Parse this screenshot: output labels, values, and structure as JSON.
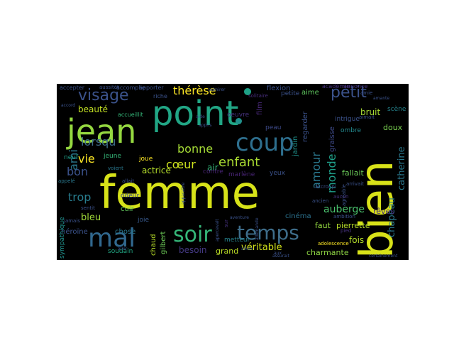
{
  "words": [
    {
      "text": "femme",
      "color": "#d7e219"
    },
    {
      "text": "point",
      "color": "#21a685"
    },
    {
      "text": "bien",
      "color": "#d8e219"
    },
    {
      "text": "jean",
      "color": "#95d840"
    },
    {
      "text": "coup",
      "color": "#2e6f8e"
    },
    {
      "text": "mal",
      "color": "#31688e"
    },
    {
      "text": "soir",
      "color": "#35b779"
    },
    {
      "text": "temps",
      "color": "#3e6d8a"
    },
    {
      "text": "visage",
      "color": "#3b528b"
    },
    {
      "text": "petit",
      "color": "#3b528b"
    },
    {
      "text": "thérèse",
      "color": "#fde725"
    },
    {
      "text": "enfant",
      "color": "#aadc32"
    },
    {
      "text": "bonne",
      "color": "#a5db36"
    },
    {
      "text": "cœur",
      "color": "#cde11d"
    },
    {
      "text": "amour",
      "color": "#2a788e"
    },
    {
      "text": "monde",
      "color": "#1f9e89"
    },
    {
      "text": "lorsqu",
      "color": "#3e6d8a"
    },
    {
      "text": "ami",
      "color": "#2a788e"
    },
    {
      "text": "bon",
      "color": "#3b528b"
    },
    {
      "text": "trop",
      "color": "#287d8e"
    },
    {
      "text": "vie",
      "color": "#fde725"
    },
    {
      "text": "bleu",
      "color": "#a0da39"
    },
    {
      "text": "véritable",
      "color": "#d2e21b"
    },
    {
      "text": "auberge",
      "color": "#4ac16d"
    },
    {
      "text": "chapeau",
      "color": "#2a788e"
    },
    {
      "text": "catherine",
      "color": "#2a788e"
    },
    {
      "text": "beauté",
      "color": "#c2df23"
    },
    {
      "text": "actrice",
      "color": "#b5de2b"
    },
    {
      "text": "air",
      "color": "#35b779"
    },
    {
      "text": "bruit",
      "color": "#a8db34"
    },
    {
      "text": "fois",
      "color": "#b5de2b"
    },
    {
      "text": "besoin",
      "color": "#443983"
    },
    {
      "text": "grand",
      "color": "#bddf26"
    },
    {
      "text": "charmante",
      "color": "#8fd744"
    },
    {
      "text": "doux",
      "color": "#7ad151"
    },
    {
      "text": "fallait",
      "color": "#6ccd5a"
    },
    {
      "text": "faut",
      "color": "#94d840"
    },
    {
      "text": "pierrette",
      "color": "#b8de29"
    },
    {
      "text": "rêves",
      "color": "#472d7b"
    },
    {
      "text": "aime",
      "color": "#60ca60"
    },
    {
      "text": "flexion",
      "color": "#3b528b"
    },
    {
      "text": "gilbert",
      "color": "#6ece58"
    },
    {
      "text": "héroïne",
      "color": "#3b528b"
    },
    {
      "text": "film",
      "color": "#482878"
    },
    {
      "text": "graisse",
      "color": "#3e4a89"
    },
    {
      "text": "jardin",
      "color": "#20928c"
    },
    {
      "text": "regarder",
      "color": "#3b528b"
    },
    {
      "text": "cinéma",
      "color": "#2c728e"
    },
    {
      "text": "chose",
      "color": "#2a788e"
    },
    {
      "text": "cuir",
      "color": "#63cb5f"
    },
    {
      "text": "chaud",
      "color": "#b8de29"
    },
    {
      "text": "odeur",
      "color": "#3e4a89"
    },
    {
      "text": "sympathique",
      "color": "#21918c"
    },
    {
      "text": "soudain",
      "color": "#22a884"
    },
    {
      "text": "jeune",
      "color": "#35b779"
    },
    {
      "text": "joue",
      "color": "#fde725"
    },
    {
      "text": "joie",
      "color": "#38598c"
    },
    {
      "text": "contre",
      "color": "#482475"
    },
    {
      "text": "marlène",
      "color": "#482475"
    },
    {
      "text": "yeux",
      "color": "#3b528b"
    },
    {
      "text": "neuf",
      "color": "#1f9e89"
    },
    {
      "text": "oeuvre",
      "color": "#46327e"
    },
    {
      "text": "petite",
      "color": "#3b528b"
    },
    {
      "text": "académie",
      "color": "#46327e"
    },
    {
      "text": "annonce",
      "color": "#46327e"
    },
    {
      "text": "accueillit",
      "color": "#35b779"
    },
    {
      "text": "accomplie",
      "color": "#3b528b"
    },
    {
      "text": "apporter",
      "color": "#3b528b"
    },
    {
      "text": "accepter",
      "color": "#3b528b"
    },
    {
      "text": "ombre",
      "color": "#23898e"
    },
    {
      "text": "intrigue",
      "color": "#3b528b"
    },
    {
      "text": "scène",
      "color": "#25848e"
    },
    {
      "text": "peau",
      "color": "#3e4a89"
    },
    {
      "text": "metteur",
      "color": "#26828e"
    },
    {
      "text": "adolescence",
      "color": "#fde725"
    },
    {
      "text": "ancien",
      "color": "#3b528b"
    },
    {
      "text": "accroupi",
      "color": "#3b528b"
    },
    {
      "text": "agréable",
      "color": "#3b528b"
    },
    {
      "text": "aucun",
      "color": "#46327e"
    },
    {
      "text": "ambition",
      "color": "#3b528b"
    },
    {
      "text": "appelé",
      "color": "#2a788e"
    },
    {
      "text": "sentit",
      "color": "#3b528b"
    },
    {
      "text": "jamais",
      "color": "#3b528b"
    },
    {
      "text": "voient",
      "color": "#2a788e"
    },
    {
      "text": "allait",
      "color": "#3b528b"
    },
    {
      "text": "riche",
      "color": "#3b528b"
    },
    {
      "text": "aussitôt",
      "color": "#3b528b"
    },
    {
      "text": "amie",
      "color": "#3b528b"
    },
    {
      "text": "pied",
      "color": "#46327e"
    },
    {
      "text": "sur",
      "color": "#46327e"
    },
    {
      "text": "arrivait",
      "color": "#3b528b"
    },
    {
      "text": "aimait",
      "color": "#3b528b"
    },
    {
      "text": "solitaire",
      "color": "#472d7b"
    },
    {
      "text": "allure",
      "color": "#3b528b"
    },
    {
      "text": "allemande",
      "color": "#3b528b"
    },
    {
      "text": "admirer",
      "color": "#3b528b"
    },
    {
      "text": "apercevait",
      "color": "#3b528b"
    },
    {
      "text": "apparaître",
      "color": "#3b528b"
    },
    {
      "text": "aller",
      "color": "#3b528b"
    },
    {
      "text": "assurait",
      "color": "#3b528b"
    },
    {
      "text": "aide",
      "color": "#3b528b"
    },
    {
      "text": "aventure",
      "color": "#3b528b"
    },
    {
      "text": "aux",
      "color": "#3b528b"
    },
    {
      "text": "appris",
      "color": "#3b528b"
    },
    {
      "text": "accord",
      "color": "#3b528b"
    },
    {
      "text": "certainement",
      "color": "#3b528b"
    },
    {
      "text": "amante",
      "color": "#3b528b"
    }
  ],
  "dots": [
    {
      "color": "#1fa187"
    },
    {
      "color": "#21918c"
    }
  ]
}
